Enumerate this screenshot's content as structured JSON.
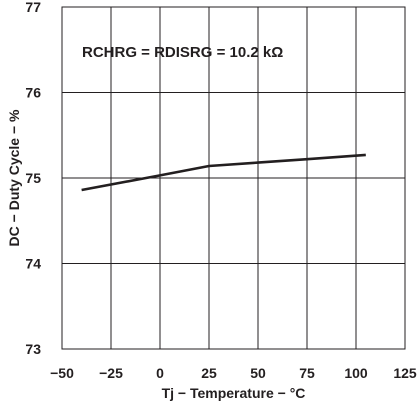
{
  "chart_data": {
    "type": "line",
    "title": "",
    "xlabel": "Tj − Temperature − °C",
    "ylabel": "DC − Duty Cycle − %",
    "xlim": [
      -50,
      125
    ],
    "ylim": [
      73,
      77
    ],
    "xticks": [
      -50,
      -25,
      0,
      25,
      50,
      75,
      100,
      125
    ],
    "xtick_labels": [
      "−50",
      "−25",
      "0",
      "25",
      "50",
      "75",
      "100",
      "125"
    ],
    "yticks": [
      73,
      74,
      75,
      76,
      77
    ],
    "ytick_labels": [
      "73",
      "74",
      "75",
      "76",
      "77"
    ],
    "grid": true,
    "annotation": "RCHRG = RDISRG = 10.2 kΩ",
    "series": [
      {
        "x": [
          -40,
          0,
          25,
          50,
          75,
          105
        ],
        "y": [
          74.86,
          75.03,
          75.14,
          75.18,
          75.22,
          75.27
        ]
      }
    ],
    "colors": {
      "line": "#231f20",
      "grid": "#231f20",
      "background": "#ffffff"
    }
  }
}
